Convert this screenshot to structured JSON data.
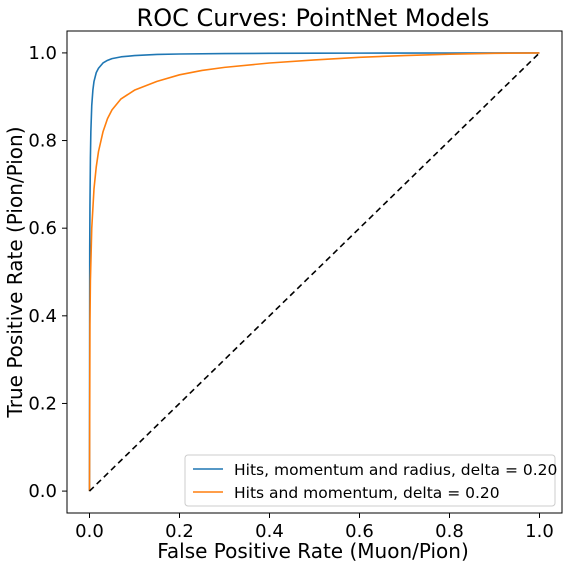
{
  "chart_data": {
    "type": "line",
    "title": "ROC Curves: PointNet Models",
    "xlabel": "False Positive Rate (Muon/Pion)",
    "ylabel": "True Positive Rate (Pion/Pion)",
    "xlim": [
      -0.05,
      1.05
    ],
    "ylim": [
      -0.05,
      1.05
    ],
    "xticks": [
      "0.0",
      "0.2",
      "0.4",
      "0.6",
      "0.8",
      "1.0"
    ],
    "yticks": [
      "0.0",
      "0.2",
      "0.4",
      "0.6",
      "0.8",
      "1.0"
    ],
    "grid": false,
    "legend_position": "lower-right",
    "series": [
      {
        "name": "Hits, momentum and radius, delta = 0.20",
        "color": "#1f77b4",
        "x": [
          0,
          0.0005,
          0.001,
          0.002,
          0.003,
          0.005,
          0.0075,
          0.01,
          0.015,
          0.02,
          0.03,
          0.04,
          0.05,
          0.07,
          0.1,
          0.15,
          0.2,
          0.3,
          0.4,
          0.5,
          0.6,
          0.7,
          0.8,
          0.9,
          1.0
        ],
        "y": [
          0,
          0.55,
          0.65,
          0.76,
          0.82,
          0.88,
          0.915,
          0.935,
          0.955,
          0.965,
          0.977,
          0.983,
          0.987,
          0.991,
          0.994,
          0.9965,
          0.9975,
          0.9985,
          0.999,
          0.9993,
          0.9995,
          0.9997,
          0.9998,
          0.9999,
          1.0
        ]
      },
      {
        "name": "Hits and momentum, delta = 0.20",
        "color": "#ff7f0e",
        "x": [
          0,
          0.001,
          0.002,
          0.005,
          0.01,
          0.015,
          0.02,
          0.03,
          0.04,
          0.05,
          0.07,
          0.1,
          0.15,
          0.2,
          0.25,
          0.3,
          0.4,
          0.5,
          0.6,
          0.7,
          0.8,
          0.9,
          1.0
        ],
        "y": [
          0,
          0.38,
          0.48,
          0.6,
          0.69,
          0.74,
          0.775,
          0.82,
          0.85,
          0.87,
          0.895,
          0.915,
          0.935,
          0.95,
          0.96,
          0.967,
          0.977,
          0.984,
          0.99,
          0.994,
          0.997,
          0.999,
          1.0
        ]
      },
      {
        "name": "",
        "color": "#000000",
        "style": "dashed",
        "x": [
          0,
          1
        ],
        "y": [
          0,
          1
        ]
      }
    ]
  }
}
